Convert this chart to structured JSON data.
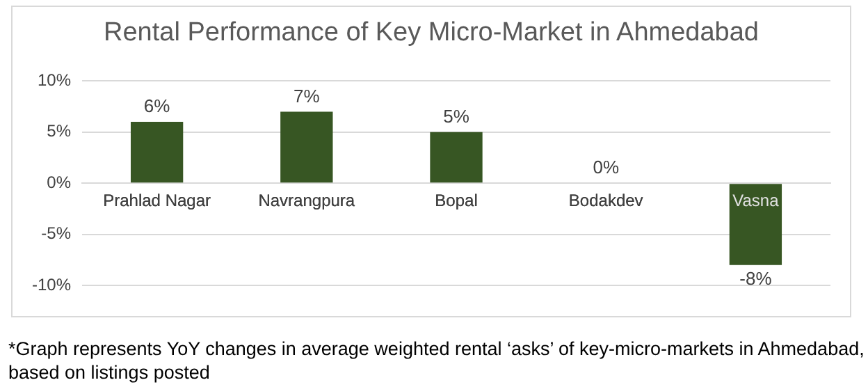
{
  "chart_data": {
    "type": "bar",
    "title": "Rental Performance of Key Micro-Market in Ahmedabad",
    "categories": [
      "Prahlad Nagar",
      "Navrangpura",
      "Bopal",
      "Bodakdev",
      "Vasna"
    ],
    "values": [
      6,
      7,
      5,
      0,
      -8
    ],
    "value_labels": [
      "6%",
      "7%",
      "5%",
      "0%",
      "-8%"
    ],
    "color": "#375623",
    "ylim": [
      -10,
      10
    ],
    "yticks": [
      {
        "value": -10,
        "label": "-10%"
      },
      {
        "value": -5,
        "label": "-5%"
      },
      {
        "value": 0,
        "label": "0%"
      },
      {
        "value": 5,
        "label": "5%"
      },
      {
        "value": 10,
        "label": "10%"
      }
    ],
    "grid": "y",
    "legend": false,
    "annotations": [
      "*Graph represents YoY changes in average weighted rental ‘asks’ of key-micro-markets in Ahmedabad, based on listings posted"
    ]
  }
}
